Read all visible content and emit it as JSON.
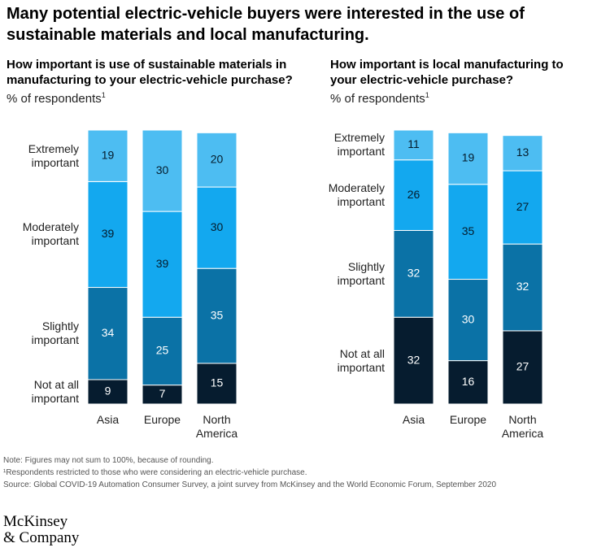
{
  "title": "Many potential electric-vehicle buyers were interested in the use of sustainable materials and local manufacturing.",
  "chart_data": [
    {
      "type": "stacked_bar",
      "title": "How important is use of sustainable materials in manufacturing to your electric-vehicle purchase?",
      "subtitle": "% of respondents",
      "subtitle_note": "1",
      "categories": [
        "Asia",
        "Europe",
        "North America"
      ],
      "series": [
        {
          "name": "Extremely important",
          "color": "#4dbdf2",
          "label_color": "#051c2c",
          "values": [
            19,
            30,
            20
          ]
        },
        {
          "name": "Moderately important",
          "color": "#13a8ef",
          "label_color": "#051c2c",
          "values": [
            39,
            39,
            30
          ]
        },
        {
          "name": "Slightly important",
          "color": "#0b72a6",
          "label_color": "#ffffff",
          "values": [
            34,
            25,
            35
          ]
        },
        {
          "name": "Not at all important",
          "color": "#061c2f",
          "label_color": "#ffffff",
          "values": [
            9,
            7,
            15
          ]
        }
      ]
    },
    {
      "type": "stacked_bar",
      "title": "How important is local manufacturing to your electric-vehicle purchase?",
      "subtitle": "% of respondents",
      "subtitle_note": "1",
      "categories": [
        "Asia",
        "Europe",
        "North America"
      ],
      "series": [
        {
          "name": "Extremely important",
          "color": "#4dbdf2",
          "label_color": "#051c2c",
          "values": [
            11,
            19,
            13
          ]
        },
        {
          "name": "Moderately important",
          "color": "#13a8ef",
          "label_color": "#051c2c",
          "values": [
            26,
            35,
            27
          ]
        },
        {
          "name": "Slightly important",
          "color": "#0b72a6",
          "label_color": "#ffffff",
          "values": [
            32,
            30,
            32
          ]
        },
        {
          "name": "Not at all important",
          "color": "#061c2f",
          "label_color": "#ffffff",
          "values": [
            32,
            16,
            27
          ]
        }
      ]
    }
  ],
  "notes": [
    "Note: Figures may not sum to 100%, because of rounding.",
    "¹Respondents restricted to those who were considering an electric-vehicle purchase.",
    "Source: Global COVID-19 Automation Consumer Survey, a joint survey from McKinsey and the World Economic Forum, September 2020"
  ],
  "logo": [
    "McKinsey",
    "& Company"
  ]
}
